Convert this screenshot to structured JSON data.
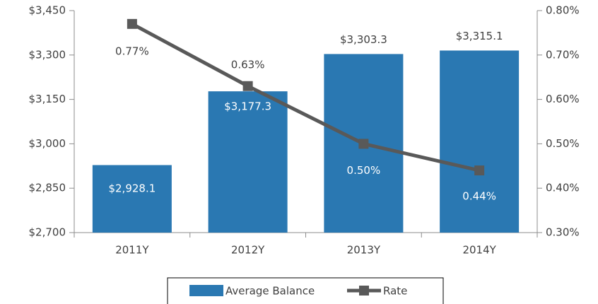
{
  "chart_data": {
    "type": "bar",
    "categories": [
      "2011Y",
      "2012Y",
      "2013Y",
      "2014Y"
    ],
    "series": [
      {
        "name": "Average Balance",
        "type": "bar",
        "color": "#2a78b2",
        "values": [
          2928.1,
          3177.3,
          3303.3,
          3315.1
        ],
        "value_labels": [
          "$2,928.1",
          "$3,177.3",
          "$3,303.3",
          "$3,315.1"
        ]
      },
      {
        "name": "Rate",
        "type": "line",
        "axis": "y2",
        "color": "#595959",
        "values": [
          0.77,
          0.63,
          0.5,
          0.44
        ],
        "value_labels": [
          "0.77%",
          "0.63%",
          "0.50%",
          "0.44%"
        ]
      }
    ],
    "ylim": [
      2700,
      3450
    ],
    "yticks": [
      {
        "value": 2700,
        "label": "$2,700"
      },
      {
        "value": 2850,
        "label": "$2,850"
      },
      {
        "value": 3000,
        "label": "$3,000"
      },
      {
        "value": 3150,
        "label": "$3,150"
      },
      {
        "value": 3300,
        "label": "$3,300"
      },
      {
        "value": 3450,
        "label": "$3,450"
      }
    ],
    "y2lim": [
      0.3,
      0.8
    ],
    "y2ticks": [
      {
        "value": 0.3,
        "label": "0.30%"
      },
      {
        "value": 0.4,
        "label": "0.40%"
      },
      {
        "value": 0.5,
        "label": "0.50%"
      },
      {
        "value": 0.6,
        "label": "0.60%"
      },
      {
        "value": 0.7,
        "label": "0.70%"
      },
      {
        "value": 0.8,
        "label": "0.80%"
      }
    ],
    "legend": "bottom"
  }
}
